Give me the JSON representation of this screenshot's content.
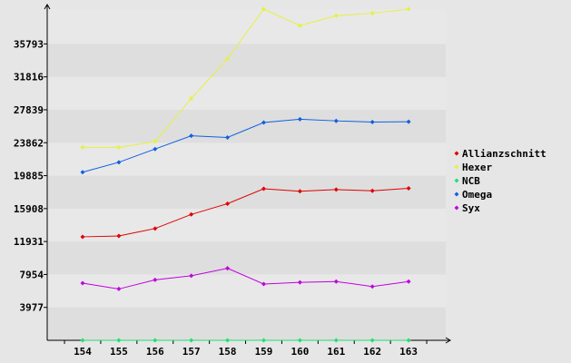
{
  "chart_data": {
    "type": "line",
    "title": "",
    "xlabel": "",
    "ylabel": "",
    "categories": [
      "154",
      "155",
      "156",
      "157",
      "158",
      "159",
      "160",
      "161",
      "162",
      "163"
    ],
    "y_ticks": [
      3977,
      7954,
      11931,
      15908,
      19885,
      23862,
      27839,
      31816,
      35793
    ],
    "y_tick_labels": [
      "3977",
      "7954",
      "11931",
      "15908",
      "19885",
      "23862",
      "27839",
      "31816",
      "35793"
    ],
    "ylim": [
      0,
      40000
    ],
    "grid": "horizontal bands",
    "legend_position": "right",
    "series": [
      {
        "name": "Allianzschnitt",
        "color": "#e00000",
        "values": [
          12500,
          12600,
          13500,
          15200,
          16500,
          18300,
          18000,
          18200,
          18050,
          18350
        ]
      },
      {
        "name": "Hexer",
        "color": "#e8f040",
        "values": [
          23300,
          23300,
          24000,
          29200,
          34000,
          40000,
          38000,
          39200,
          39500,
          40000
        ]
      },
      {
        "name": "NCB",
        "color": "#20e070",
        "values": [
          0,
          0,
          0,
          0,
          0,
          0,
          0,
          0,
          0,
          0
        ]
      },
      {
        "name": "Omega",
        "color": "#1060e0",
        "values": [
          20300,
          21500,
          23100,
          24700,
          24500,
          26300,
          26700,
          26500,
          26350,
          26400
        ]
      },
      {
        "name": "Syx",
        "color": "#c000e0",
        "values": [
          6900,
          6200,
          7300,
          7800,
          8700,
          6800,
          7000,
          7100,
          6500,
          7100
        ]
      }
    ]
  }
}
